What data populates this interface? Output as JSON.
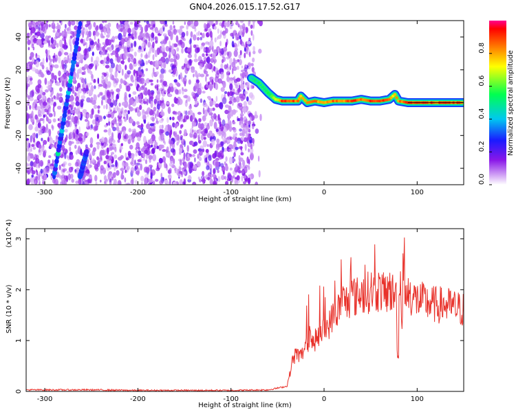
{
  "page_title": "GN04.2026.015.17.52.G17",
  "chart_data": [
    {
      "type": "heatmap",
      "title": "GN04.2026.015.17.52.G17",
      "xlabel": "Height of straight line (km)",
      "ylabel": "Frequency (Hz)",
      "xlim": [
        -320,
        150
      ],
      "ylim": [
        -50,
        50
      ],
      "x_ticks": [
        "-300",
        "-200",
        "-100",
        "0",
        "100"
      ],
      "y_ticks": [
        "-40",
        "-20",
        "0",
        "20",
        "40"
      ],
      "colorbar": {
        "label": "Normalized spectral amplitude",
        "range": [
          0,
          1
        ],
        "ticks": [
          "0.0",
          "0.2",
          "0.4",
          "0.6",
          "0.8"
        ]
      },
      "noise_region": {
        "x_start": -320,
        "x_end": -75
      },
      "interference_streaks": [
        {
          "x_bottom": -290,
          "y_bottom": -45,
          "x_top": -262,
          "y_top": 48
        },
        {
          "x_bottom": -262,
          "y_bottom": -45,
          "x_top": -255,
          "y_top": -30
        }
      ],
      "signal_track": {
        "x": [
          -78,
          -70,
          -60,
          -52,
          -45,
          -35,
          -28,
          -25,
          -18,
          -10,
          0,
          10,
          20,
          30,
          40,
          50,
          60,
          70,
          76,
          80,
          90,
          100,
          120,
          150
        ],
        "freq": [
          15,
          12,
          6,
          2,
          1,
          1,
          1,
          4,
          0,
          1,
          0,
          1,
          1,
          1,
          2,
          1,
          1,
          2,
          5,
          1,
          0,
          0,
          0,
          0
        ],
        "amplitude": [
          0.5,
          0.55,
          0.6,
          0.7,
          0.95,
          0.95,
          0.9,
          0.8,
          0.85,
          0.9,
          0.85,
          0.9,
          0.85,
          0.95,
          0.9,
          0.95,
          0.95,
          0.9,
          0.8,
          0.9,
          0.95,
          0.95,
          0.95,
          0.95
        ]
      }
    },
    {
      "type": "line",
      "title": "",
      "xlabel": "Height of straight line (km)",
      "ylabel": "SNR (10 * v/v)",
      "y_multiplier": "(x10^4)",
      "xlim": [
        -320,
        150
      ],
      "ylim": [
        0,
        3.2
      ],
      "x_ticks": [
        "-300",
        "-200",
        "-100",
        "0",
        "100"
      ],
      "y_ticks": [
        "0",
        "1",
        "2",
        "3"
      ],
      "color": "#e8312a",
      "series": [
        {
          "x": [
            -320,
            -300,
            -250,
            -200,
            -150,
            -100,
            -60,
            -40,
            -36,
            -34,
            -30,
            -25,
            -20,
            -18,
            -15,
            -12,
            -10,
            -5,
            0,
            5,
            10,
            15,
            20,
            25,
            30,
            35,
            40,
            45,
            50,
            55,
            60,
            65,
            70,
            75,
            80,
            84,
            86,
            88,
            90,
            95,
            100,
            110,
            120,
            130,
            140,
            150
          ],
          "values": [
            0.03,
            0.03,
            0.03,
            0.02,
            0.02,
            0.02,
            0.03,
            0.1,
            0.4,
            0.6,
            0.75,
            0.7,
            0.85,
            0.9,
            1.2,
            0.9,
            1.0,
            1.1,
            1.2,
            1.3,
            1.5,
            1.6,
            1.8,
            1.75,
            1.9,
            1.85,
            1.95,
            1.9,
            2.0,
            1.95,
            2.0,
            1.9,
            2.0,
            1.9,
            1.85,
            1.5,
            2.1,
            1.8,
            1.95,
            1.85,
            1.8,
            1.75,
            1.7,
            1.7,
            1.65,
            1.6
          ]
        }
      ]
    }
  ]
}
